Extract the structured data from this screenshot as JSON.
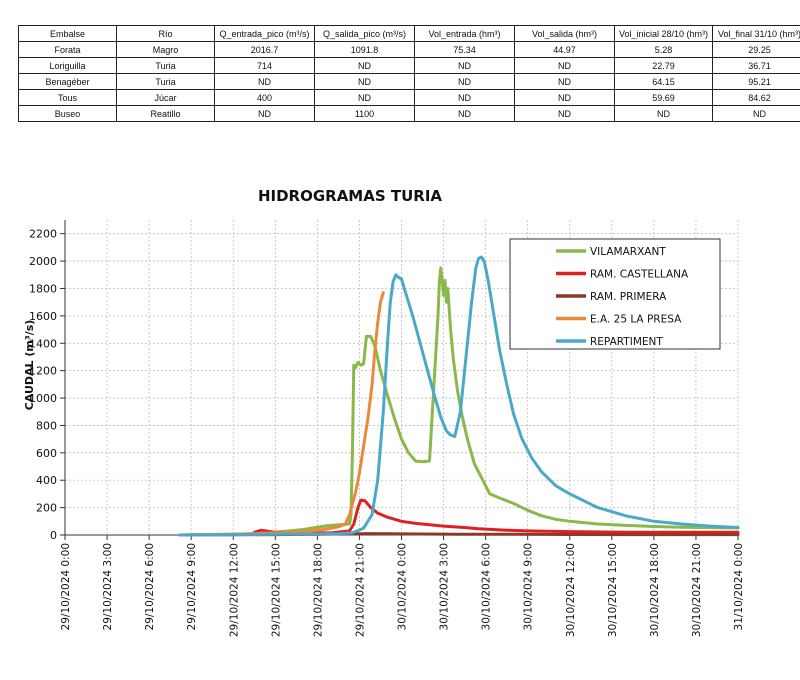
{
  "table": {
    "headers": [
      "Embalse",
      "Río",
      "Q_entrada_pico (m³/s)",
      "Q_salida_pico (m³/s)",
      "Vol_entrada (hm³)",
      "Vol_salida (hm³)",
      "Vol_inicial 28/10 (hm³)",
      "Vol_final 31/10 (hm³)"
    ],
    "rows": [
      [
        "Forata",
        "Magro",
        "2016.7",
        "1091.8",
        "75.34",
        "44.97",
        "5.28",
        "29.25"
      ],
      [
        "Loriguilla",
        "Turia",
        "714",
        "ND",
        "ND",
        "ND",
        "22.79",
        "36.71"
      ],
      [
        "Benagéber",
        "Turia",
        "ND",
        "ND",
        "ND",
        "ND",
        "64.15",
        "95.21"
      ],
      [
        "Tous",
        "Júcar",
        "400",
        "ND",
        "ND",
        "ND",
        "59.69",
        "84.62"
      ],
      [
        "Buseo",
        "Reatillo",
        "ND",
        "1100",
        "ND",
        "ND",
        "ND",
        "ND"
      ]
    ]
  },
  "chart_data": {
    "type": "line",
    "title": "HIDROGRAMAS TURIA",
    "xlabel": "",
    "ylabel": "CAUDAL  (m³/s)",
    "ylim": [
      0,
      2300
    ],
    "yticks": [
      0,
      200,
      400,
      600,
      800,
      1000,
      1200,
      1400,
      1600,
      1800,
      2000,
      2200
    ],
    "xlim_hours": [
      0,
      48
    ],
    "x_unit": "hours since 29/10/2024 0:00",
    "xticks": [
      {
        "h": 0,
        "label": "29/10/2024 0:00"
      },
      {
        "h": 3,
        "label": "29/10/2024 3:00"
      },
      {
        "h": 6,
        "label": "29/10/2024 6:00"
      },
      {
        "h": 9,
        "label": "29/10/2024 9:00"
      },
      {
        "h": 12,
        "label": "29/10/2024 12:00"
      },
      {
        "h": 15,
        "label": "29/10/2024 15:00"
      },
      {
        "h": 18,
        "label": "29/10/2024 18:00"
      },
      {
        "h": 21,
        "label": "29/10/2024 21:00"
      },
      {
        "h": 24,
        "label": "30/10/2024 0:00"
      },
      {
        "h": 27,
        "label": "30/10/2024 3:00"
      },
      {
        "h": 30,
        "label": "30/10/2024 6:00"
      },
      {
        "h": 33,
        "label": "30/10/2024 9:00"
      },
      {
        "h": 36,
        "label": "30/10/2024 12:00"
      },
      {
        "h": 39,
        "label": "30/10/2024 15:00"
      },
      {
        "h": 42,
        "label": "30/10/2024 18:00"
      },
      {
        "h": 45,
        "label": "30/10/2024 21:00"
      },
      {
        "h": 48,
        "label": "31/10/2024 0:00"
      }
    ],
    "legend_position": "top-right",
    "series": [
      {
        "name": "VILAMARXANT",
        "color": "#8ab84a",
        "x": [
          8.2,
          14,
          17,
          18.5,
          19.5,
          20.3,
          20.4,
          20.5,
          20.6,
          20.7,
          20.9,
          21.1,
          21.3,
          21.5,
          21.8,
          22.1,
          22.5,
          23,
          23.5,
          24,
          24.5,
          25,
          25.5,
          26,
          26.6,
          26.7,
          26.8,
          27.0,
          27.1,
          27.2,
          27.3,
          27.5,
          27.7,
          28,
          28.3,
          28.7,
          29.2,
          29.8,
          30.3,
          31,
          32,
          33,
          34,
          35,
          36,
          38,
          40,
          42,
          44,
          46,
          48
        ],
        "y": [
          0,
          10,
          40,
          65,
          75,
          80,
          150,
          600,
          1240,
          1220,
          1260,
          1240,
          1250,
          1450,
          1450,
          1380,
          1200,
          1020,
          850,
          700,
          600,
          540,
          535,
          540,
          1600,
          1850,
          1950,
          1750,
          1860,
          1700,
          1800,
          1500,
          1280,
          1050,
          880,
          700,
          520,
          400,
          300,
          270,
          230,
          180,
          140,
          115,
          100,
          80,
          70,
          62,
          57,
          54,
          52
        ]
      },
      {
        "name": "RAM. CASTELLANA",
        "color": "#e02020",
        "x": [
          13.5,
          14,
          15,
          17,
          19,
          20.3,
          20.6,
          20.9,
          21.1,
          21.4,
          21.8,
          22.3,
          23,
          24,
          25,
          27,
          28.5,
          29.5,
          30.5,
          31.5,
          33,
          36,
          40,
          44,
          48
        ],
        "y": [
          20,
          35,
          20,
          15,
          15,
          30,
          80,
          200,
          255,
          250,
          200,
          160,
          130,
          100,
          85,
          65,
          55,
          45,
          40,
          35,
          30,
          25,
          20,
          20,
          20
        ]
      },
      {
        "name": "RAM. PRIMERA",
        "color": "#8b3a2a",
        "x": [
          8.2,
          15,
          18,
          20,
          22,
          24,
          28,
          32,
          36,
          40,
          44,
          48
        ],
        "y": [
          0,
          3,
          5,
          8,
          10,
          8,
          6,
          5,
          4,
          3,
          3,
          3
        ]
      },
      {
        "name": "E.A. 25 LA PRESA",
        "color": "#e98a3a",
        "x": [
          8.2,
          12,
          15,
          17,
          18.5,
          19.5,
          20,
          20.3,
          20.7,
          21,
          21.3,
          21.6,
          21.9,
          22.1,
          22.3,
          22.5,
          22.7
        ],
        "y": [
          0,
          5,
          15,
          25,
          40,
          60,
          80,
          150,
          300,
          450,
          650,
          850,
          1100,
          1350,
          1550,
          1700,
          1770
        ]
      },
      {
        "name": "REPARTIMENT",
        "color": "#4aa8c8",
        "x": [
          8.2,
          12,
          15,
          18,
          19.5,
          20.5,
          21.3,
          21.9,
          22.3,
          22.7,
          23,
          23.2,
          23.4,
          23.6,
          23.8,
          24,
          24.2,
          24.5,
          24.8,
          25.2,
          25.6,
          26,
          26.4,
          26.8,
          27.2,
          27.5,
          27.8,
          28.2,
          28.6,
          29,
          29.3,
          29.5,
          29.7,
          29.9,
          30.2,
          30.6,
          31,
          31.5,
          32,
          32.6,
          33.3,
          34,
          35,
          36,
          37,
          38,
          40,
          42,
          44,
          46,
          48
        ],
        "y": [
          0,
          2,
          5,
          8,
          10,
          15,
          50,
          150,
          400,
          900,
          1400,
          1700,
          1850,
          1900,
          1880,
          1870,
          1800,
          1700,
          1600,
          1450,
          1300,
          1150,
          1000,
          860,
          760,
          730,
          720,
          900,
          1300,
          1700,
          1950,
          2020,
          2030,
          2000,
          1850,
          1600,
          1350,
          1100,
          880,
          700,
          560,
          460,
          360,
          300,
          250,
          200,
          140,
          100,
          80,
          65,
          55
        ]
      }
    ]
  }
}
